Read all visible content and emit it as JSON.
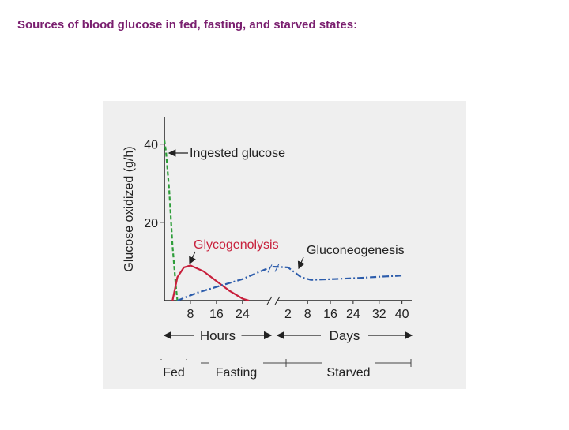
{
  "title": "Sources of blood glucose in fed, fasting, and starved states:",
  "chart_data": {
    "type": "line",
    "ylabel": "Glucose oxidized (g/h)",
    "xlim": [
      0,
      76
    ],
    "xticks": [
      8,
      16,
      24,
      {
        "value": 38,
        "label": "2"
      },
      {
        "value": 44,
        "label": "8"
      },
      {
        "value": 51,
        "label": "16"
      },
      {
        "value": 58,
        "label": "24"
      },
      {
        "value": 66,
        "label": "32"
      },
      {
        "value": 73,
        "label": "40"
      }
    ],
    "ylim": [
      0,
      47
    ],
    "yticks": [
      20,
      40
    ],
    "axis_groups": [
      "Hours",
      "Days"
    ],
    "phases": [
      "Fed",
      "Fasting",
      "Starved"
    ],
    "series": [
      {
        "name": "Ingested glucose",
        "color": "#2e9e3a",
        "x": [
          0,
          0.5,
          1.5,
          2.5,
          3.5,
          4
        ],
        "values": [
          41,
          38,
          28,
          14,
          4,
          0
        ]
      },
      {
        "name": "Glycogenolysis",
        "color": "#c8203c",
        "x": [
          2.5,
          4,
          6,
          8,
          12,
          16,
          20,
          24,
          26
        ],
        "values": [
          0,
          6,
          8.5,
          9,
          7.5,
          5,
          2.5,
          0.5,
          0
        ]
      },
      {
        "name": "Gluconeogenesis",
        "color": "#2c5cab",
        "x": [
          4,
          10,
          16,
          24,
          33,
          38,
          42,
          45,
          52,
          60,
          68,
          73
        ],
        "values": [
          0,
          2,
          3.5,
          5.5,
          8.7,
          8.5,
          6,
          5.3,
          5.5,
          5.8,
          6.2,
          6.4
        ]
      }
    ]
  }
}
